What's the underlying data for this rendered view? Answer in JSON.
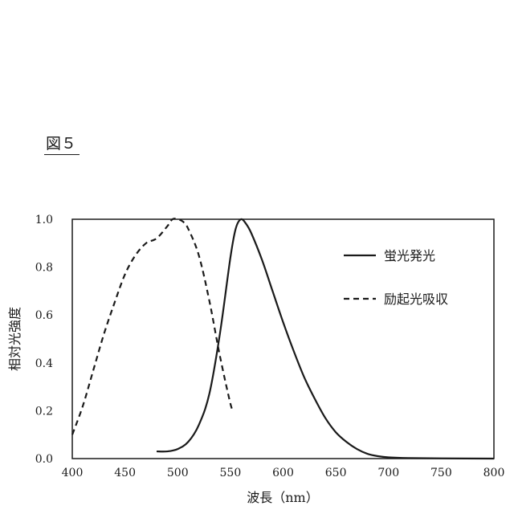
{
  "figure_label": "図５",
  "chart_data": {
    "type": "line",
    "xlabel": "波長（nm）",
    "ylabel": "相対光強度",
    "xlim": [
      400,
      800
    ],
    "ylim": [
      0,
      1.0
    ],
    "x_ticks": [
      400,
      450,
      500,
      550,
      600,
      650,
      700,
      750,
      800
    ],
    "y_ticks": [
      0.0,
      0.2,
      0.4,
      0.6,
      0.8,
      1.0
    ],
    "y_tick_labels": [
      "0.0",
      "0.2",
      "0.4",
      "0.6",
      "0.8",
      "1.0"
    ],
    "grid": false,
    "legend_position": "top-right",
    "series": [
      {
        "name": "蛍光発光",
        "style": "solid",
        "color": "#1a1a1a",
        "points": [
          [
            480,
            0.03
          ],
          [
            490,
            0.03
          ],
          [
            500,
            0.04
          ],
          [
            510,
            0.07
          ],
          [
            520,
            0.14
          ],
          [
            530,
            0.27
          ],
          [
            540,
            0.52
          ],
          [
            550,
            0.84
          ],
          [
            555,
            0.96
          ],
          [
            560,
            1.0
          ],
          [
            565,
            0.98
          ],
          [
            570,
            0.94
          ],
          [
            580,
            0.83
          ],
          [
            590,
            0.7
          ],
          [
            600,
            0.57
          ],
          [
            610,
            0.45
          ],
          [
            620,
            0.34
          ],
          [
            630,
            0.25
          ],
          [
            640,
            0.17
          ],
          [
            650,
            0.11
          ],
          [
            660,
            0.07
          ],
          [
            670,
            0.04
          ],
          [
            680,
            0.02
          ],
          [
            690,
            0.01
          ],
          [
            700,
            0.005
          ],
          [
            720,
            0.002
          ],
          [
            750,
            0.001
          ],
          [
            800,
            0.0
          ]
        ]
      },
      {
        "name": "励起光吸収",
        "style": "dashed",
        "color": "#1a1a1a",
        "points": [
          [
            400,
            0.1
          ],
          [
            410,
            0.22
          ],
          [
            420,
            0.37
          ],
          [
            430,
            0.52
          ],
          [
            440,
            0.65
          ],
          [
            450,
            0.77
          ],
          [
            460,
            0.85
          ],
          [
            470,
            0.9
          ],
          [
            480,
            0.92
          ],
          [
            490,
            0.97
          ],
          [
            495,
            1.0
          ],
          [
            500,
            1.0
          ],
          [
            505,
            0.99
          ],
          [
            510,
            0.96
          ],
          [
            520,
            0.85
          ],
          [
            530,
            0.66
          ],
          [
            540,
            0.43
          ],
          [
            550,
            0.23
          ],
          [
            553,
            0.2
          ]
        ]
      }
    ]
  }
}
